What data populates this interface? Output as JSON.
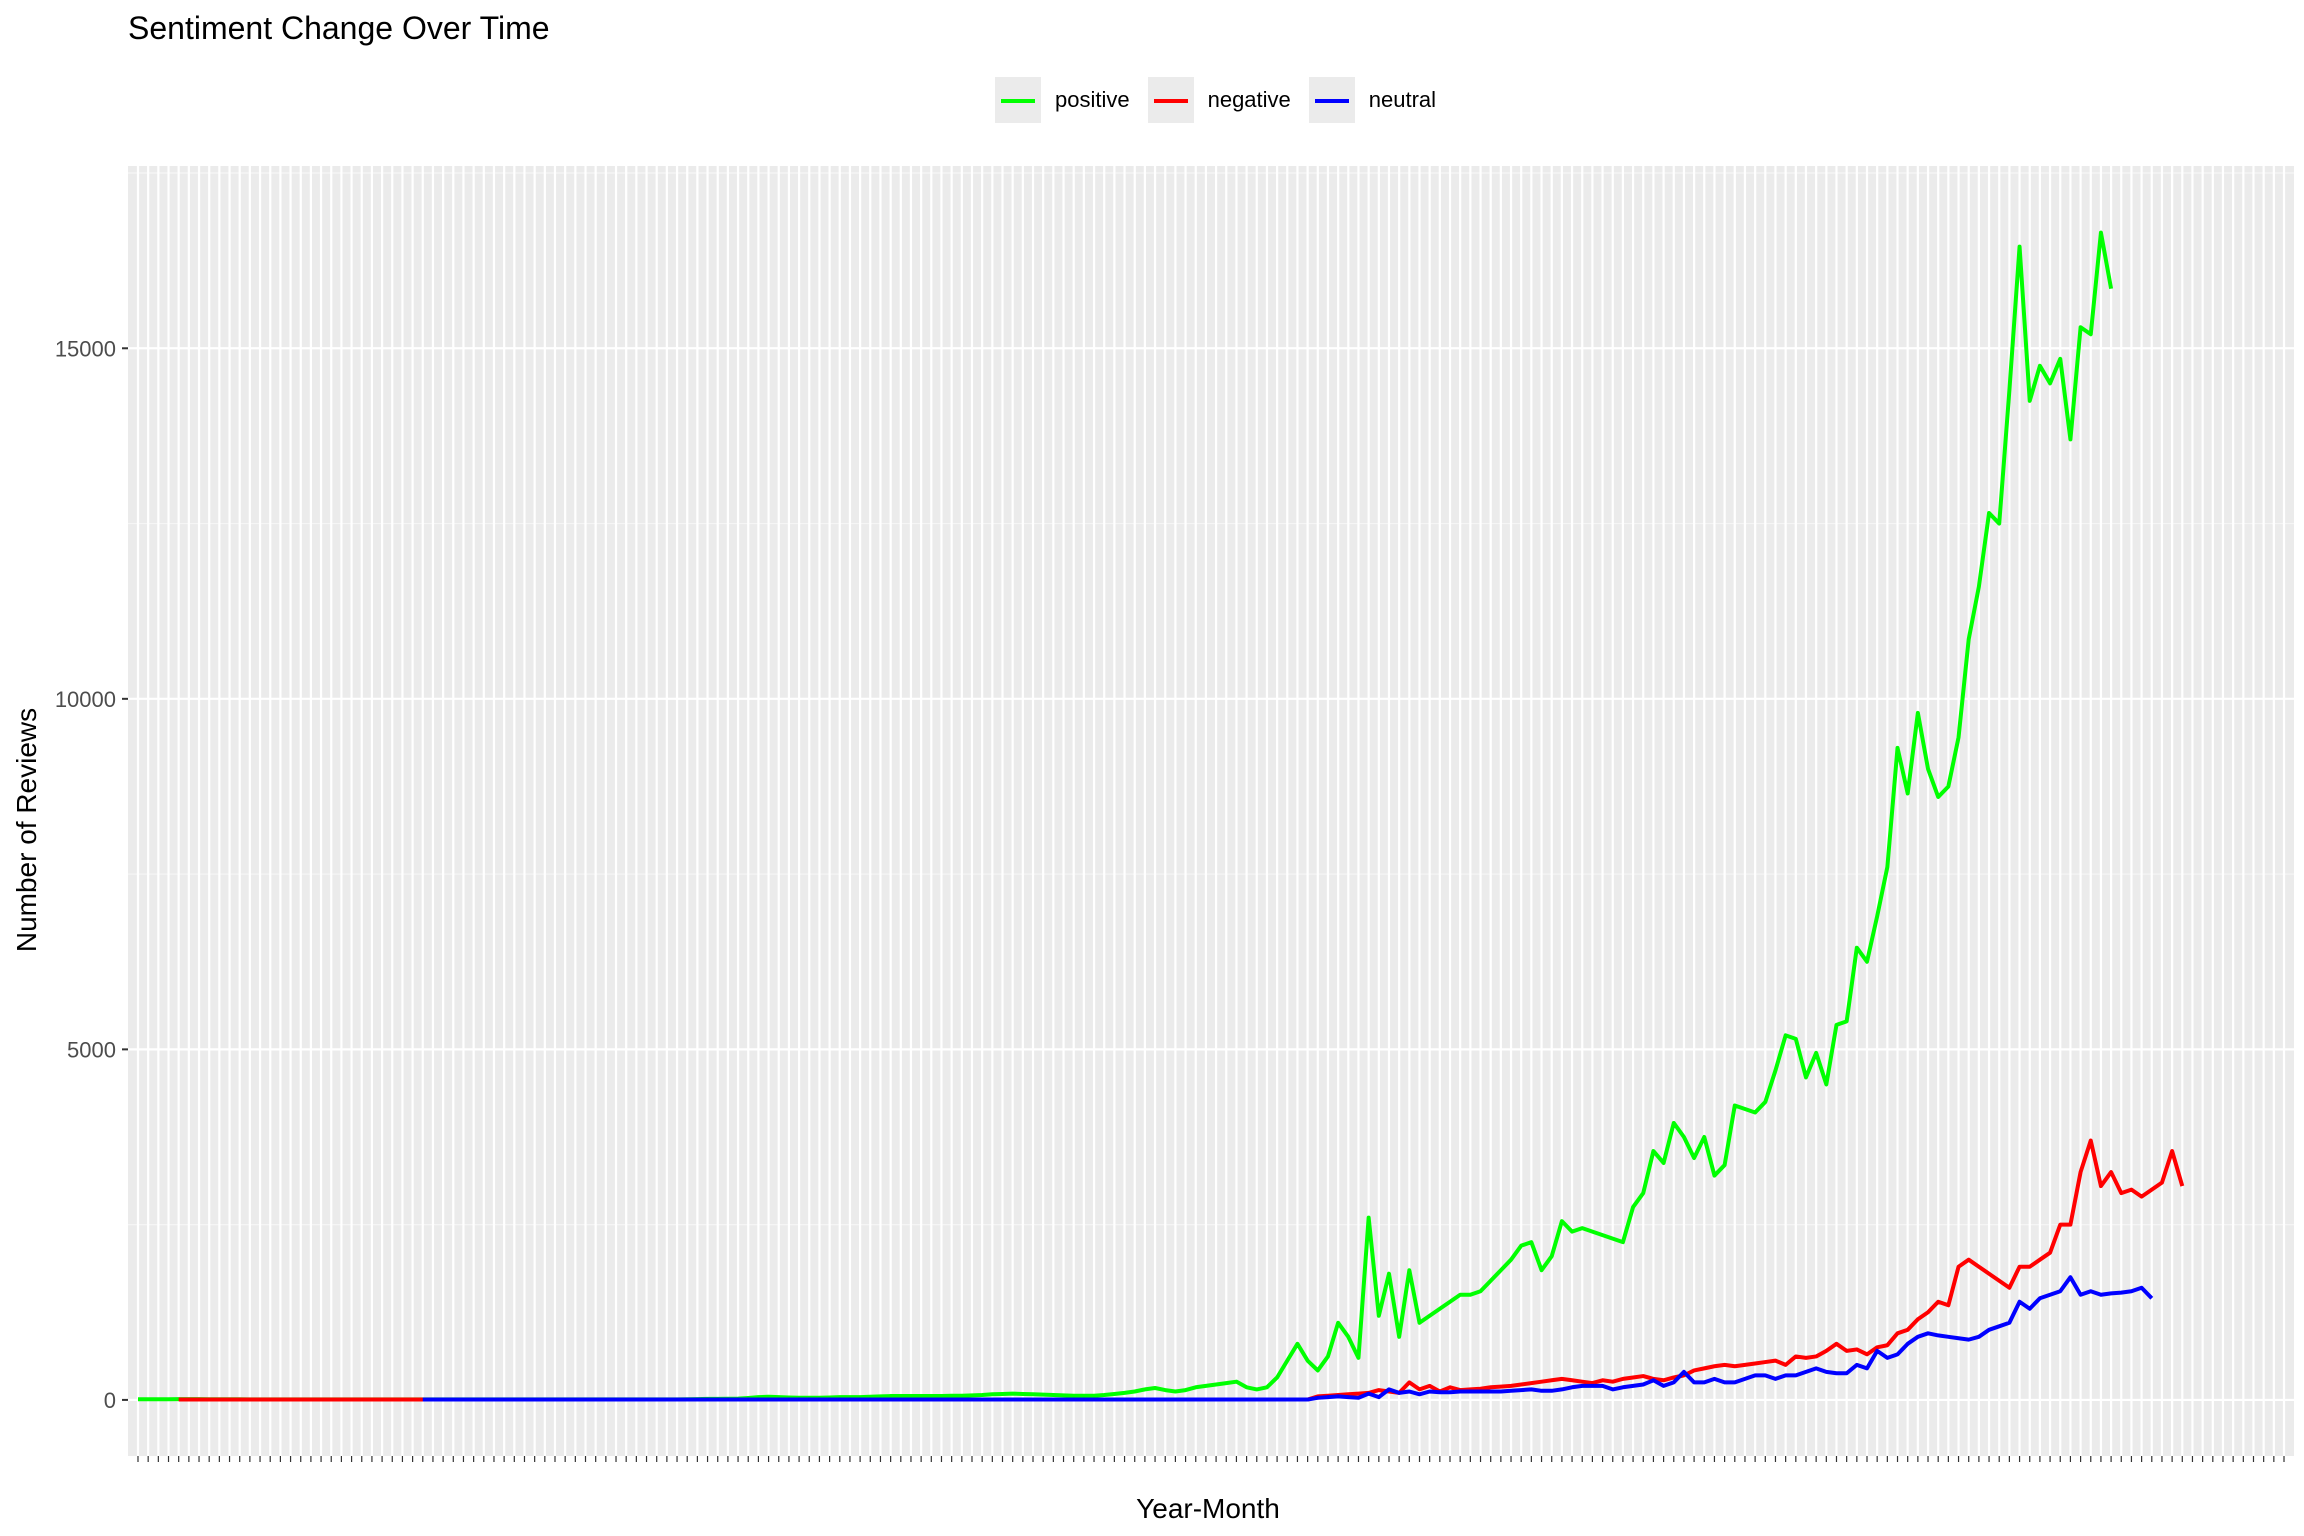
{
  "chart_data": {
    "type": "line",
    "title": "Sentiment Change Over Time",
    "xlabel": "Year-Month",
    "ylabel": "Number of Reviews",
    "ylim": [
      -800,
      17600
    ],
    "y_ticks": [
      0,
      5000,
      10000,
      15000
    ],
    "y_tick_labels": [
      "0",
      "5000",
      "10000",
      "15000"
    ],
    "grid": true,
    "legend_position": "top",
    "n_periods": 212,
    "series": [
      {
        "name": "positive",
        "color": "#00ff00",
        "start_index": 0,
        "values": [
          10,
          10,
          10,
          10,
          12,
          12,
          11,
          10,
          9,
          9,
          9,
          8,
          8,
          8,
          8,
          8,
          8,
          8,
          8,
          8,
          8,
          8,
          8,
          8,
          8,
          8,
          8,
          8,
          8,
          8,
          8,
          8,
          8,
          8,
          8,
          8,
          8,
          8,
          8,
          8,
          8,
          8,
          8,
          8,
          8,
          8,
          8,
          8,
          8,
          8,
          8,
          8,
          8,
          8,
          10,
          12,
          14,
          15,
          16,
          18,
          28,
          40,
          45,
          40,
          35,
          30,
          30,
          30,
          35,
          40,
          40,
          40,
          45,
          50,
          55,
          55,
          55,
          55,
          55,
          55,
          60,
          60,
          65,
          70,
          80,
          85,
          90,
          85,
          80,
          75,
          70,
          65,
          60,
          60,
          60,
          70,
          85,
          100,
          120,
          150,
          170,
          140,
          120,
          140,
          180,
          200,
          220,
          240,
          260,
          180,
          150,
          180,
          320,
          560,
          800,
          560,
          420,
          620,
          1100,
          900,
          600,
          2600,
          1200,
          1800,
          900,
          1850,
          1100,
          1200,
          1300,
          1400,
          1500,
          1500,
          1550,
          1700,
          1850,
          2000,
          2200,
          2250,
          1850,
          2050,
          2550,
          2400,
          2450,
          2400,
          2350,
          2300,
          2250,
          2750,
          2950,
          3550,
          3380,
          3950,
          3750,
          3450,
          3750,
          3200,
          3350,
          4200,
          4150,
          4100,
          4250,
          4700,
          5200,
          5150,
          4600,
          4950,
          4500,
          5350,
          5400,
          6450,
          6250,
          6900,
          7600,
          9300,
          8650,
          9800,
          9000,
          8600,
          8750,
          9450,
          10850,
          11600,
          12650,
          12500,
          14400,
          16450,
          14250,
          14750,
          14500,
          14850,
          13700,
          15300,
          15200,
          16650,
          15850
        ]
      },
      {
        "name": "negative",
        "color": "#ff0000",
        "start_index": 4,
        "values": [
          5,
          5,
          5,
          5,
          5,
          5,
          5,
          5,
          5,
          5,
          5,
          5,
          5,
          5,
          5,
          5,
          5,
          5,
          5,
          5,
          5,
          5,
          5,
          5,
          5,
          5,
          5,
          5,
          5,
          5,
          5,
          5,
          5,
          5,
          5,
          5,
          5,
          5,
          5,
          5,
          5,
          5,
          5,
          5,
          5,
          5,
          5,
          5,
          5,
          5,
          5,
          5,
          5,
          5,
          5,
          5,
          5,
          5,
          5,
          5,
          5,
          5,
          5,
          5,
          5,
          5,
          5,
          5,
          5,
          5,
          5,
          5,
          5,
          5,
          5,
          5,
          5,
          5,
          5,
          5,
          5,
          5,
          5,
          5,
          5,
          5,
          5,
          5,
          5,
          5,
          5,
          5,
          5,
          5,
          5,
          5,
          5,
          5,
          5,
          5,
          5,
          5,
          5,
          5,
          5,
          5,
          5,
          5,
          5,
          5,
          5,
          5,
          50,
          60,
          70,
          80,
          90,
          100,
          140,
          120,
          100,
          250,
          150,
          200,
          120,
          180,
          140,
          150,
          160,
          180,
          190,
          200,
          220,
          240,
          260,
          280,
          300,
          280,
          260,
          240,
          280,
          260,
          300,
          320,
          340,
          300,
          280,
          320,
          350,
          420,
          450,
          480,
          500,
          480,
          500,
          520,
          540,
          560,
          500,
          620,
          600,
          620,
          700,
          800,
          700,
          720,
          650,
          750,
          780,
          950,
          1000,
          1150,
          1250,
          1400,
          1350,
          1900,
          2000,
          1900,
          1800,
          1700,
          1600,
          1900,
          1900,
          2000,
          2100,
          2500,
          2500,
          3250,
          3700,
          3050,
          3250,
          2950,
          3000,
          2900,
          3000,
          3100,
          3550,
          3050
        ]
      },
      {
        "name": "neutral",
        "color": "#0000ff",
        "start_index": 28,
        "values": [
          5,
          5,
          5,
          5,
          5,
          5,
          5,
          5,
          5,
          5,
          5,
          5,
          5,
          5,
          5,
          5,
          5,
          5,
          5,
          5,
          5,
          5,
          5,
          5,
          5,
          5,
          5,
          5,
          5,
          5,
          5,
          5,
          5,
          5,
          5,
          5,
          5,
          5,
          5,
          5,
          5,
          5,
          5,
          5,
          5,
          5,
          5,
          5,
          5,
          5,
          5,
          5,
          5,
          5,
          5,
          5,
          5,
          5,
          5,
          5,
          5,
          5,
          5,
          5,
          5,
          5,
          5,
          5,
          5,
          5,
          5,
          5,
          5,
          5,
          5,
          5,
          5,
          5,
          5,
          5,
          5,
          5,
          5,
          5,
          5,
          5,
          5,
          5,
          30,
          40,
          50,
          40,
          30,
          90,
          40,
          150,
          100,
          120,
          80,
          120,
          110,
          110,
          120,
          120,
          120,
          120,
          120,
          130,
          140,
          150,
          130,
          130,
          150,
          180,
          200,
          200,
          200,
          150,
          180,
          200,
          220,
          280,
          200,
          250,
          400,
          250,
          250,
          300,
          250,
          250,
          300,
          350,
          350,
          300,
          350,
          350,
          400,
          450,
          400,
          380,
          380,
          500,
          450,
          700,
          600,
          650,
          800,
          900,
          950,
          920,
          900,
          880,
          860,
          900,
          1000,
          1050,
          1100,
          1400,
          1300,
          1450,
          1500,
          1550,
          1750,
          1500,
          1550,
          1500,
          1520,
          1530,
          1550,
          1600,
          1450
        ]
      }
    ]
  }
}
